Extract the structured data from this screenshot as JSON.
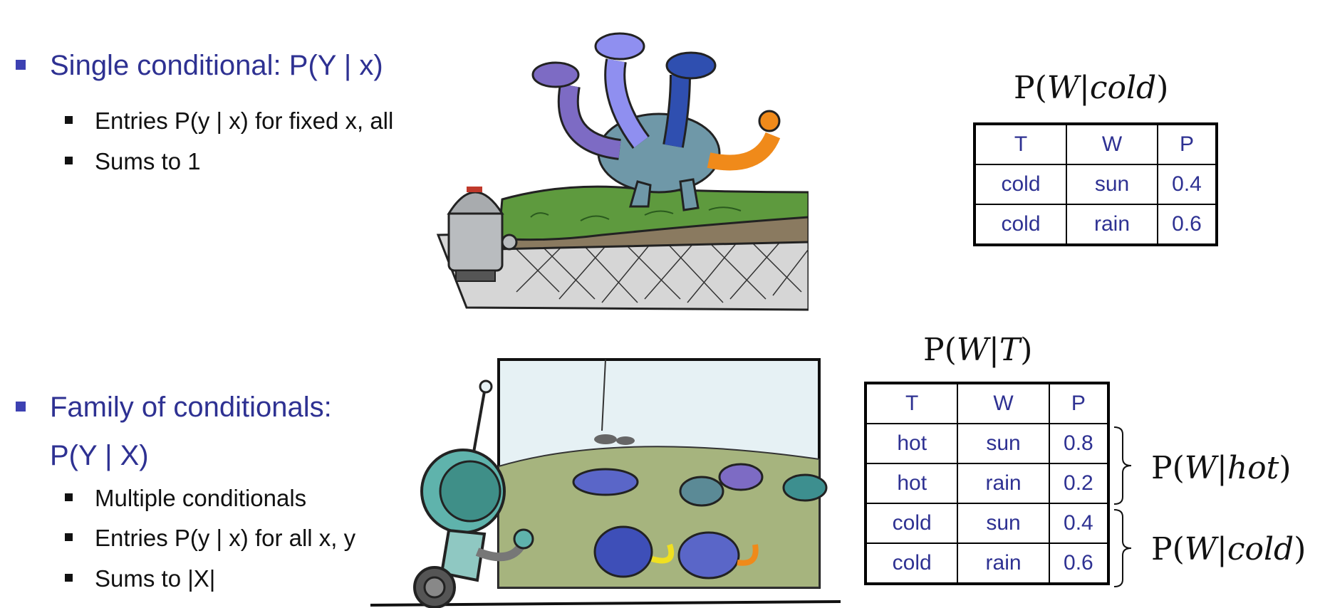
{
  "section1": {
    "heading": "Single conditional: P(Y | x)",
    "bullets": [
      "Entries P(y | x) for fixed x, all",
      "Sums to 1"
    ]
  },
  "section2": {
    "heading_line1": "Family of conditionals:",
    "heading_line2": "P(Y | X)",
    "bullets": [
      "Multiple conditionals",
      "Entries P(y | x) for all x, y",
      "Sums to |X|"
    ]
  },
  "table1": {
    "label_prefix": "P(",
    "label_var": "W",
    "label_bar": "|",
    "label_cond": "cold",
    "label_suffix": ")",
    "headers": [
      "T",
      "W",
      "P"
    ],
    "rows": [
      [
        "cold",
        "sun",
        "0.4"
      ],
      [
        "cold",
        "rain",
        "0.6"
      ]
    ]
  },
  "table2": {
    "label_prefix": "P(",
    "label_var": "W",
    "label_bar": "|",
    "label_cond": "T",
    "label_suffix": ")",
    "headers": [
      "T",
      "W",
      "P"
    ],
    "rows": [
      [
        "hot",
        "sun",
        "0.8"
      ],
      [
        "hot",
        "rain",
        "0.2"
      ],
      [
        "cold",
        "sun",
        "0.4"
      ],
      [
        "cold",
        "rain",
        "0.6"
      ]
    ]
  },
  "brace_labels": {
    "hot": {
      "prefix": "P(",
      "var": "W",
      "bar": "|",
      "cond": "hot",
      "suffix": ")"
    },
    "cold": {
      "prefix": "P(",
      "var": "W",
      "bar": "|",
      "cond": "cold",
      "suffix": ")"
    }
  },
  "colors": {
    "heading_blue": "#2e3192",
    "bullet_blue": "#3d41b2",
    "dragon_blue": "#2f4fb0",
    "dragon_light": "#8f8ff0",
    "dragon_purple": "#7d6bc4",
    "dragon_teal": "#6f98a8",
    "dragon_orange": "#f08a1a",
    "grass": "#5e9a3e",
    "dirt": "#8a7a60",
    "rock": "#d6d6d6",
    "robot_teal": "#5fb3ac",
    "field": "#a6b47e",
    "sky": "#e6f1f4"
  },
  "icons": [
    "three-headed-dragon-illustration",
    "robot-illustration",
    "dragons-in-field-illustration",
    "robot-looking-illustration"
  ]
}
